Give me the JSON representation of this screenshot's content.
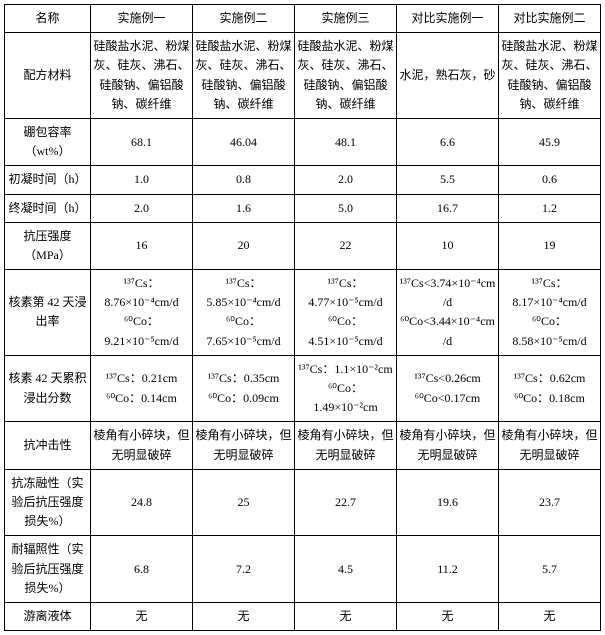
{
  "headers": [
    "名称",
    "实施例一",
    "实施例二",
    "实施例三",
    "对比实施例一",
    "对比实施例二"
  ],
  "rows": [
    {
      "label": "配方材料",
      "c1": "硅酸盐水泥、粉煤灰、硅灰、沸石、硅酸钠、偏铝酸钠、碳纤维",
      "c2": "硅酸盐水泥、粉煤灰、硅灰、沸石、硅酸钠、偏铝酸钠、碳纤维",
      "c3": "硅酸盐水泥、粉煤灰、硅灰、沸石、硅酸钠、偏铝酸钠、碳纤维",
      "c4": "水泥，熟石灰，砂",
      "c5": "硅酸盐水泥、粉煤灰、硅灰、沸石、硅酸钠、偏铝酸钠、碳纤维"
    },
    {
      "label": "硼包容率（wt%）",
      "c1": "68.1",
      "c2": "46.04",
      "c3": "48.1",
      "c4": "6.6",
      "c5": "45.9"
    },
    {
      "label": "初凝时间（h）",
      "c1": "1.0",
      "c2": "0.8",
      "c3": "2.0",
      "c4": "5.5",
      "c5": "0.6"
    },
    {
      "label": "终凝时间（h）",
      "c1": "2.0",
      "c2": "1.6",
      "c3": "5.0",
      "c4": "16.7",
      "c5": "1.2"
    },
    {
      "label": "抗压强度（MPa）",
      "c1": "16",
      "c2": "20",
      "c3": "22",
      "c4": "10",
      "c5": "19"
    },
    {
      "label": "核素第 42 天浸出率",
      "c1": "¹³⁷Cs：8.76×10⁻⁴cm/d\n⁶⁰Co：9.21×10⁻⁵cm/d",
      "c2": "¹³⁷Cs：5.85×10⁻⁴cm/d\n⁶⁰Co：7.65×10⁻⁵cm/d",
      "c3": "¹³⁷Cs：4.77×10⁻⁵cm/d\n⁶⁰Co：4.51×10⁻⁵cm/d",
      "c4": "¹³⁷Cs<3.74×10⁻⁴cm/d\n⁶⁰Co<3.44×10⁻⁴cm/d",
      "c5": "¹³⁷Cs：8.17×10⁻⁴cm/d\n⁶⁰Co：8.58×10⁻⁵cm/d"
    },
    {
      "label": "核素 42 天累积浸出分数",
      "c1": "¹³⁷Cs：0.21cm\n⁶⁰Co：0.14cm",
      "c2": "¹³⁷Cs：0.35cm\n⁶⁰Co：0.09cm",
      "c3": "¹³⁷Cs：1.1×10⁻²cm\n⁶⁰Co：1.49×10⁻²cm",
      "c4": "¹³⁷Cs<0.26cm\n⁶⁰Co<0.17cm",
      "c5": "¹³⁷Cs：0.62cm\n⁶⁰Co：0.18cm"
    },
    {
      "label": "抗冲击性",
      "c1": "棱角有小碎块，但无明显破碎",
      "c2": "棱角有小碎块，但无明显破碎",
      "c3": "棱角有小碎块，但无明显破碎",
      "c4": "棱角有小碎块，但无明显破碎",
      "c5": "棱角有小碎块，但无明显破碎"
    },
    {
      "label": "抗冻融性（实验后抗压强度损失%）",
      "c1": "24.8",
      "c2": "25",
      "c3": "22.7",
      "c4": "19.6",
      "c5": "23.7"
    },
    {
      "label": "耐辐照性（实验后抗压强度损失%）",
      "c1": "6.8",
      "c2": "7.2",
      "c3": "4.5",
      "c4": "11.2",
      "c5": "5.7"
    },
    {
      "label": "游离液体",
      "c1": "无",
      "c2": "无",
      "c3": "无",
      "c4": "无",
      "c5": "无"
    }
  ]
}
